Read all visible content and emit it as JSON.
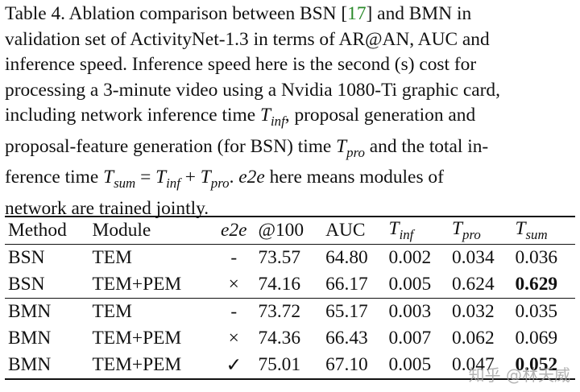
{
  "caption": {
    "line1_a": "Table 4.   Ablation comparison between BSN [",
    "line1_ref": "17",
    "line1_b": "] and BMN in",
    "line2": "validation set of ActivityNet-1.3 in terms of AR@AN, AUC and",
    "line3": "inference speed.  Inference speed here is the second (s) cost for",
    "line4": "processing a 3-minute video using a Nvidia 1080-Ti graphic card,",
    "line5_a": "including network inference time ",
    "line5_sym": "T",
    "line5_sub": "inf",
    "line5_b": ", proposal generation and",
    "line6_a": "proposal-feature generation (for BSN) time ",
    "line6_sym": "T",
    "line6_sub": "pro",
    "line6_b": " and the total in-",
    "line7_a": "ference time ",
    "line7_sym1": "T",
    "line7_sub1": "sum",
    "line7_eq": " = ",
    "line7_sym2": "T",
    "line7_sub2": "inf",
    "line7_plus": " + ",
    "line7_sym3": "T",
    "line7_sub3": "pro",
    "line7_dot": ".  ",
    "line7_e2e": "e2e",
    "line7_b": " here means modules of",
    "line8": "network are trained jointly."
  },
  "table": {
    "headers": {
      "method": "Method",
      "module": "Module",
      "e2e": "e2e",
      "at100": "@100",
      "auc": "AUC",
      "tinf_sym": "T",
      "tinf_sub": "inf",
      "tpro_sym": "T",
      "tpro_sub": "pro",
      "tsum_sym": "T",
      "tsum_sub": "sum"
    },
    "rows": [
      {
        "method": "BSN",
        "module": "TEM",
        "e2e": "-",
        "at100": "73.57",
        "auc": "64.80",
        "tinf": "0.002",
        "tpro": "0.034",
        "tsum": "0.036"
      },
      {
        "method": "BSN",
        "module": "TEM+PEM",
        "e2e": "×",
        "at100": "74.16",
        "auc": "66.17",
        "tinf": "0.005",
        "tpro": "0.624",
        "tsum": "0.629"
      },
      {
        "method": "BMN",
        "module": "TEM",
        "e2e": "-",
        "at100": "73.72",
        "auc": "65.17",
        "tinf": "0.003",
        "tpro": "0.032",
        "tsum": "0.035"
      },
      {
        "method": "BMN",
        "module": "TEM+PEM",
        "e2e": "×",
        "at100": "74.36",
        "auc": "66.43",
        "tinf": "0.007",
        "tpro": "0.062",
        "tsum": "0.069"
      },
      {
        "method": "BMN",
        "module": "TEM+PEM",
        "e2e": "✓",
        "at100": "75.01",
        "auc": "67.10",
        "tinf": "0.005",
        "tpro": "0.047",
        "tsum": "0.052"
      }
    ]
  },
  "watermark": "知乎 @林天威"
}
